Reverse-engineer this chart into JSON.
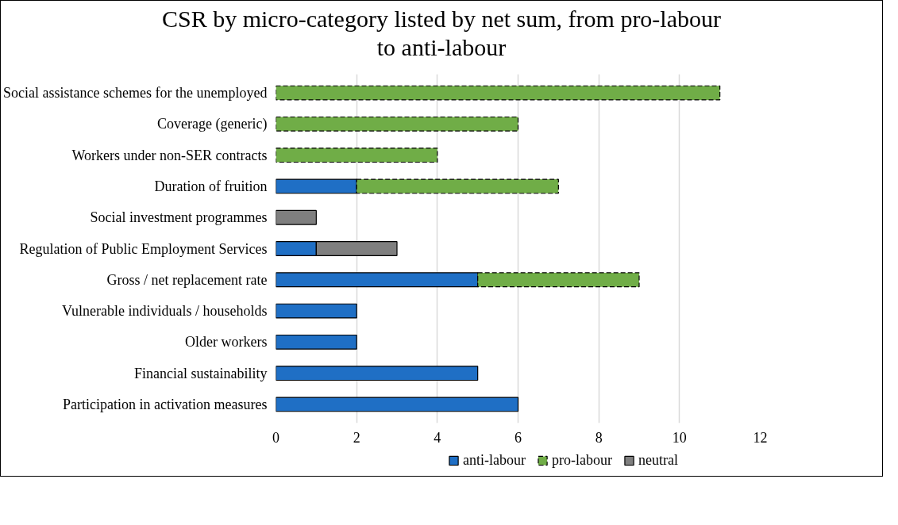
{
  "chart_data": {
    "type": "bar",
    "orientation": "horizontal",
    "stacked": true,
    "title": "CSR by micro-category listed by net sum, from pro-labour to anti-labour",
    "categories": [
      "Social assistance schemes for the unemployed",
      "Coverage (generic)",
      "Workers under non-SER contracts",
      "Duration of fruition",
      "Social investment programmes",
      "Regulation of Public Employment Services",
      "Gross / net replacement rate",
      "Vulnerable individuals / households",
      "Older workers",
      "Financial sustainability",
      "Participation in activation measures"
    ],
    "series": [
      {
        "name": "anti-labour",
        "color": "#1f6fc5",
        "values": [
          null,
          null,
          null,
          2,
          null,
          1,
          5,
          2,
          2,
          5,
          6
        ]
      },
      {
        "name": "pro-labour",
        "color": "#70ad47",
        "line_style": "dashed",
        "values": [
          11,
          6,
          4,
          5,
          null,
          null,
          4,
          null,
          null,
          null,
          null
        ]
      },
      {
        "name": "neutral",
        "color": "#7f7f7f",
        "values": [
          null,
          null,
          null,
          null,
          1,
          2,
          null,
          null,
          null,
          null,
          null
        ]
      }
    ],
    "xlim": [
      0,
      12
    ],
    "xticks": [
      0,
      2,
      4,
      6,
      8,
      10,
      12
    ],
    "grid": "x",
    "legend": "bottom"
  }
}
